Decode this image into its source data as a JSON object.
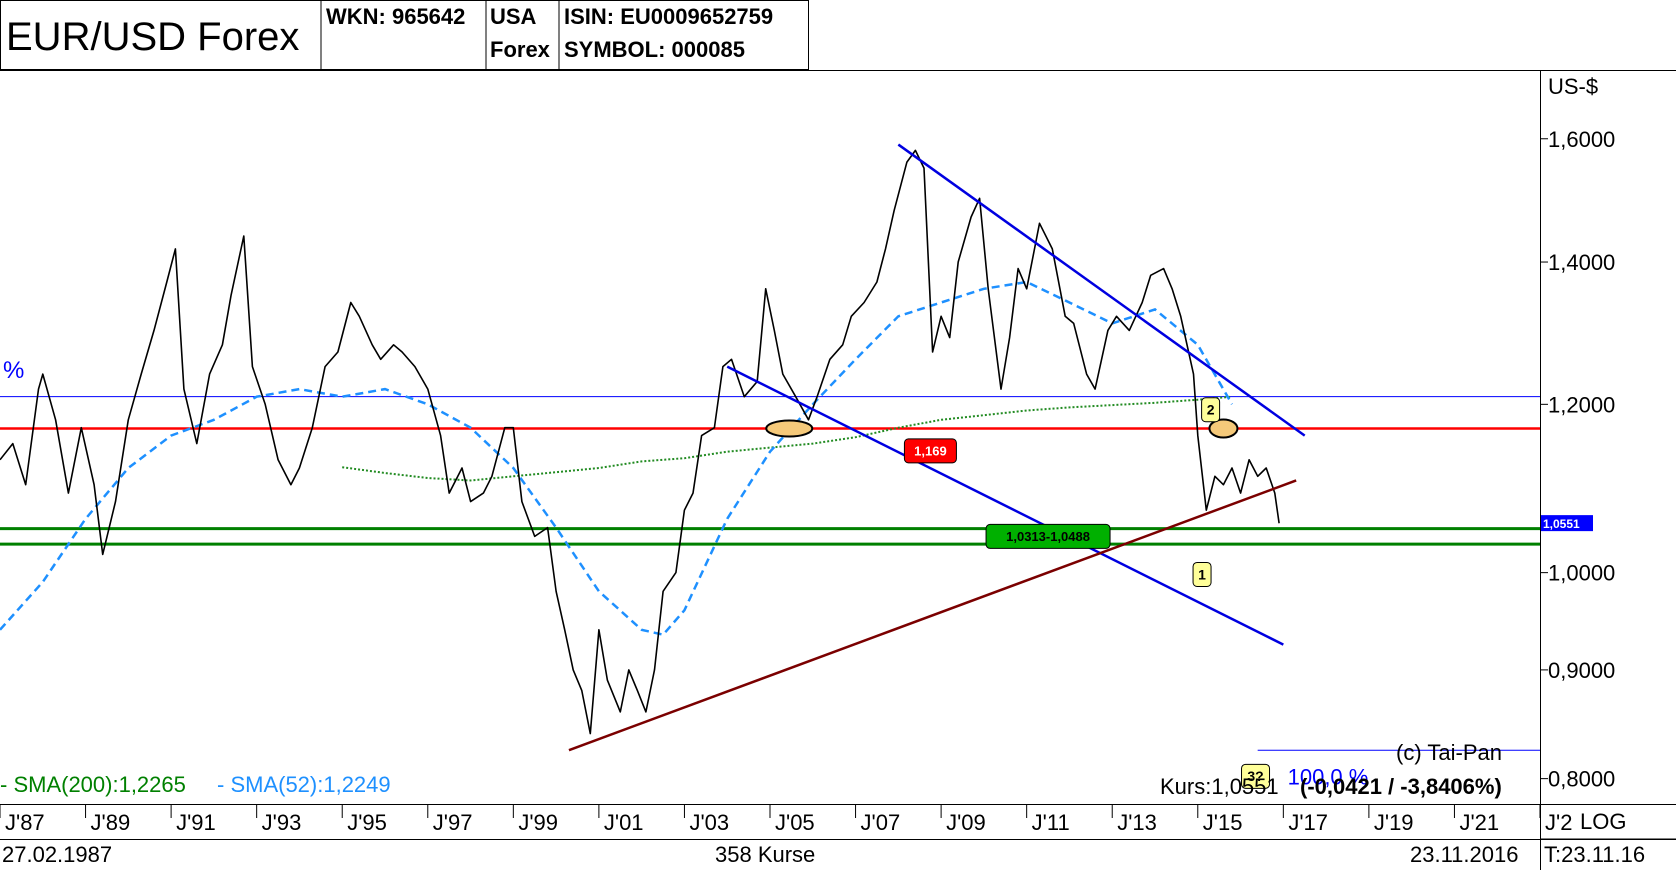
{
  "header": {
    "title": "EUR/USD Forex",
    "wkn": "WKN: 965642",
    "country_1": "USA",
    "country_2": "Forex",
    "isin": "ISIN: EU0009652759",
    "symbol": "SYMBOL: 000085"
  },
  "axis": {
    "currency_label": "US-$",
    "scale_label": "LOG",
    "start_date": "27.02.1987",
    "end_date": "23.11.2016",
    "count_label": "358 Kurse",
    "time_label": "T:23.11.16"
  },
  "indicators": {
    "sma200": "- SMA(200):1,2265",
    "sma52": "- SMA(52):1,2249",
    "left_fragment": "%"
  },
  "footer": {
    "copyright": "(c) Tai-Pan",
    "kurs_label": "Kurs:1,0551",
    "kurs_change": "(-0,0421 / -3,8406%)"
  },
  "annotations": {
    "resistance_label": "1,169",
    "support_label": "1,0313-1,0488",
    "price_tag": "1,0551",
    "marker_1": "1",
    "marker_2": "2",
    "marker_3": "3?",
    "target_pct": "100,0 %"
  },
  "colors": {
    "price": "#000000",
    "sma52": "#1e90ff",
    "sma200": "#228b22",
    "resistance": "#ff0000",
    "support": "#008000",
    "channel": "#0000e0",
    "trendline": "#7b0000",
    "hline": "#0000ff",
    "label_red": "#ff0000",
    "label_green": "#00b000",
    "marker_yellow": "#ffff99",
    "ellipse_fill": "#f5c97a"
  },
  "chart_data": {
    "type": "line",
    "yscale": "log",
    "ylim": [
      0.78,
      1.72
    ],
    "xlim": [
      1987.0,
      2023.0
    ],
    "yticks": [
      {
        "value": 1.6,
        "label": "1,6000"
      },
      {
        "value": 1.4,
        "label": "1,4000"
      },
      {
        "value": 1.2,
        "label": "1,2000"
      },
      {
        "value": 1.0,
        "label": "1,0000"
      },
      {
        "value": 0.9,
        "label": "0,9000"
      },
      {
        "value": 0.8,
        "label": "0,8000"
      }
    ],
    "xticks": [
      {
        "value": 1987,
        "label": "J'87"
      },
      {
        "value": 1989,
        "label": "J'89"
      },
      {
        "value": 1991,
        "label": "J'91"
      },
      {
        "value": 1993,
        "label": "J'93"
      },
      {
        "value": 1995,
        "label": "J'95"
      },
      {
        "value": 1997,
        "label": "J'97"
      },
      {
        "value": 1999,
        "label": "J'99"
      },
      {
        "value": 2001,
        "label": "J'01"
      },
      {
        "value": 2003,
        "label": "J'03"
      },
      {
        "value": 2005,
        "label": "J'05"
      },
      {
        "value": 2007,
        "label": "J'07"
      },
      {
        "value": 2009,
        "label": "J'09"
      },
      {
        "value": 2011,
        "label": "J'11"
      },
      {
        "value": 2013,
        "label": "J'13"
      },
      {
        "value": 2015,
        "label": "J'15"
      },
      {
        "value": 2017,
        "label": "J'17"
      },
      {
        "value": 2019,
        "label": "J'19"
      },
      {
        "value": 2021,
        "label": "J'21"
      },
      {
        "value": 2023,
        "label": "J'2"
      }
    ],
    "series": [
      {
        "name": "EUR/USD",
        "points": [
          [
            1987.0,
            1.13
          ],
          [
            1987.3,
            1.15
          ],
          [
            1987.6,
            1.1
          ],
          [
            1987.9,
            1.22
          ],
          [
            1988.0,
            1.24
          ],
          [
            1988.3,
            1.18
          ],
          [
            1988.6,
            1.09
          ],
          [
            1988.9,
            1.17
          ],
          [
            1989.2,
            1.1
          ],
          [
            1989.4,
            1.02
          ],
          [
            1989.7,
            1.08
          ],
          [
            1990.0,
            1.18
          ],
          [
            1990.3,
            1.24
          ],
          [
            1990.6,
            1.3
          ],
          [
            1990.9,
            1.37
          ],
          [
            1991.1,
            1.42
          ],
          [
            1991.3,
            1.22
          ],
          [
            1991.6,
            1.15
          ],
          [
            1991.9,
            1.24
          ],
          [
            1992.2,
            1.28
          ],
          [
            1992.4,
            1.35
          ],
          [
            1992.7,
            1.44
          ],
          [
            1992.9,
            1.25
          ],
          [
            1993.2,
            1.2
          ],
          [
            1993.5,
            1.13
          ],
          [
            1993.8,
            1.1
          ],
          [
            1994.0,
            1.12
          ],
          [
            1994.3,
            1.17
          ],
          [
            1994.6,
            1.25
          ],
          [
            1994.9,
            1.27
          ],
          [
            1995.2,
            1.34
          ],
          [
            1995.4,
            1.32
          ],
          [
            1995.7,
            1.28
          ],
          [
            1995.9,
            1.26
          ],
          [
            1996.2,
            1.28
          ],
          [
            1996.4,
            1.27
          ],
          [
            1996.7,
            1.25
          ],
          [
            1997.0,
            1.22
          ],
          [
            1997.3,
            1.16
          ],
          [
            1997.5,
            1.09
          ],
          [
            1997.8,
            1.12
          ],
          [
            1998.0,
            1.08
          ],
          [
            1998.3,
            1.09
          ],
          [
            1998.5,
            1.11
          ],
          [
            1998.8,
            1.17
          ],
          [
            1999.0,
            1.17
          ],
          [
            1999.2,
            1.08
          ],
          [
            1999.5,
            1.04
          ],
          [
            1999.8,
            1.05
          ],
          [
            2000.0,
            0.98
          ],
          [
            2000.2,
            0.94
          ],
          [
            2000.4,
            0.9
          ],
          [
            2000.6,
            0.88
          ],
          [
            2000.8,
            0.84
          ],
          [
            2001.0,
            0.94
          ],
          [
            2001.2,
            0.89
          ],
          [
            2001.5,
            0.86
          ],
          [
            2001.7,
            0.9
          ],
          [
            2001.9,
            0.88
          ],
          [
            2002.1,
            0.86
          ],
          [
            2002.3,
            0.9
          ],
          [
            2002.5,
            0.98
          ],
          [
            2002.8,
            1.0
          ],
          [
            2003.0,
            1.07
          ],
          [
            2003.2,
            1.09
          ],
          [
            2003.4,
            1.16
          ],
          [
            2003.7,
            1.17
          ],
          [
            2003.9,
            1.25
          ],
          [
            2004.1,
            1.26
          ],
          [
            2004.4,
            1.21
          ],
          [
            2004.7,
            1.23
          ],
          [
            2004.9,
            1.36
          ],
          [
            2005.1,
            1.3
          ],
          [
            2005.3,
            1.24
          ],
          [
            2005.6,
            1.21
          ],
          [
            2005.9,
            1.18
          ],
          [
            2006.1,
            1.21
          ],
          [
            2006.4,
            1.26
          ],
          [
            2006.7,
            1.28
          ],
          [
            2006.9,
            1.32
          ],
          [
            2007.2,
            1.34
          ],
          [
            2007.5,
            1.37
          ],
          [
            2007.7,
            1.42
          ],
          [
            2007.9,
            1.48
          ],
          [
            2008.2,
            1.56
          ],
          [
            2008.4,
            1.58
          ],
          [
            2008.6,
            1.55
          ],
          [
            2008.8,
            1.27
          ],
          [
            2009.0,
            1.32
          ],
          [
            2009.2,
            1.29
          ],
          [
            2009.4,
            1.4
          ],
          [
            2009.7,
            1.47
          ],
          [
            2009.9,
            1.5
          ],
          [
            2010.1,
            1.36
          ],
          [
            2010.4,
            1.22
          ],
          [
            2010.6,
            1.29
          ],
          [
            2010.8,
            1.39
          ],
          [
            2011.0,
            1.36
          ],
          [
            2011.3,
            1.46
          ],
          [
            2011.6,
            1.42
          ],
          [
            2011.9,
            1.32
          ],
          [
            2012.1,
            1.31
          ],
          [
            2012.4,
            1.24
          ],
          [
            2012.6,
            1.22
          ],
          [
            2012.9,
            1.3
          ],
          [
            2013.1,
            1.32
          ],
          [
            2013.4,
            1.3
          ],
          [
            2013.7,
            1.34
          ],
          [
            2013.9,
            1.38
          ],
          [
            2014.2,
            1.39
          ],
          [
            2014.4,
            1.36
          ],
          [
            2014.6,
            1.32
          ],
          [
            2014.9,
            1.24
          ],
          [
            2015.0,
            1.16
          ],
          [
            2015.2,
            1.07
          ],
          [
            2015.4,
            1.11
          ],
          [
            2015.6,
            1.1
          ],
          [
            2015.8,
            1.12
          ],
          [
            2016.0,
            1.09
          ],
          [
            2016.2,
            1.13
          ],
          [
            2016.4,
            1.11
          ],
          [
            2016.6,
            1.12
          ],
          [
            2016.8,
            1.09
          ],
          [
            2016.9,
            1.055
          ]
        ]
      },
      {
        "name": "SMA(52)",
        "points": [
          [
            1987.0,
            0.94
          ],
          [
            1988.0,
            0.99
          ],
          [
            1989.0,
            1.06
          ],
          [
            1990.0,
            1.12
          ],
          [
            1991.0,
            1.16
          ],
          [
            1992.0,
            1.18
          ],
          [
            1993.0,
            1.21
          ],
          [
            1994.0,
            1.22
          ],
          [
            1995.0,
            1.21
          ],
          [
            1996.0,
            1.22
          ],
          [
            1997.0,
            1.2
          ],
          [
            1998.0,
            1.17
          ],
          [
            1999.0,
            1.12
          ],
          [
            2000.0,
            1.05
          ],
          [
            2001.0,
            0.98
          ],
          [
            2002.0,
            0.94
          ],
          [
            2002.5,
            0.935
          ],
          [
            2003.0,
            0.96
          ],
          [
            2004.0,
            1.06
          ],
          [
            2005.0,
            1.14
          ],
          [
            2006.0,
            1.2
          ],
          [
            2007.0,
            1.26
          ],
          [
            2008.0,
            1.32
          ],
          [
            2009.0,
            1.34
          ],
          [
            2010.0,
            1.36
          ],
          [
            2011.0,
            1.37
          ],
          [
            2012.0,
            1.34
          ],
          [
            2013.0,
            1.31
          ],
          [
            2014.0,
            1.33
          ],
          [
            2015.0,
            1.28
          ],
          [
            2015.8,
            1.2
          ]
        ]
      },
      {
        "name": "SMA(200)",
        "points": [
          [
            1995.0,
            1.121
          ],
          [
            1996.0,
            1.114
          ],
          [
            1997.0,
            1.108
          ],
          [
            1998.0,
            1.105
          ],
          [
            1999.0,
            1.11
          ],
          [
            2000.0,
            1.115
          ],
          [
            2001.0,
            1.12
          ],
          [
            2002.0,
            1.128
          ],
          [
            2003.0,
            1.132
          ],
          [
            2004.0,
            1.14
          ],
          [
            2005.0,
            1.145
          ],
          [
            2006.0,
            1.15
          ],
          [
            2007.0,
            1.158
          ],
          [
            2008.0,
            1.17
          ],
          [
            2009.0,
            1.18
          ],
          [
            2010.0,
            1.186
          ],
          [
            2011.0,
            1.192
          ],
          [
            2012.0,
            1.196
          ],
          [
            2013.0,
            1.199
          ],
          [
            2014.0,
            1.202
          ],
          [
            2015.0,
            1.206
          ],
          [
            2015.8,
            1.21
          ]
        ]
      }
    ],
    "lines": [
      {
        "kind": "resistance",
        "y": 1.169
      },
      {
        "kind": "support",
        "y": 1.0313
      },
      {
        "kind": "support",
        "y": 1.0488
      },
      {
        "kind": "horizontal",
        "y": 1.21
      },
      {
        "kind": "target",
        "y": 0.825
      },
      {
        "kind": "channel_top",
        "from": [
          2008.0,
          1.59
        ],
        "to": [
          2017.5,
          1.16
        ]
      },
      {
        "kind": "channel_bottom",
        "from": [
          2004.0,
          1.25
        ],
        "to": [
          2017.0,
          0.925
        ]
      },
      {
        "kind": "trendline",
        "from": [
          2000.3,
          0.825
        ],
        "to": [
          2017.3,
          1.105
        ]
      }
    ]
  }
}
